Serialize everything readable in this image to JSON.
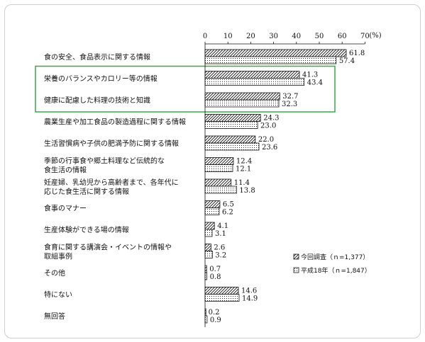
{
  "chart_data": {
    "type": "bar",
    "orientation": "horizontal",
    "xlim": [
      0,
      70
    ],
    "xticks": [
      "0",
      "10",
      "20",
      "30",
      "40",
      "50",
      "60",
      "70"
    ],
    "unit_label": "(%)",
    "categories": [
      [
        "食の安全、食品表示に関する情報"
      ],
      [
        "栄養のバランスやカロリー等の情報"
      ],
      [
        "健康に配慮した料理の技術と知識"
      ],
      [
        "農業生産や加工食品の製造過程に関する情報"
      ],
      [
        "生活習慣病や子供の肥満予防に関する情報"
      ],
      [
        "季節の行事食や郷土料理など伝統的な",
        "食生活の情報"
      ],
      [
        "妊産婦、乳幼児から高齢者まで、各年代に",
        "応じた食生活に関する情報"
      ],
      [
        "食事のマナー"
      ],
      [
        "生産体験ができる場の情報"
      ],
      [
        "食育に関する講演会・イベントの情報や",
        "取組事例"
      ],
      [
        "その他"
      ],
      [
        "特にない"
      ],
      [
        "無回答"
      ]
    ],
    "series": [
      {
        "name": "今回調査（ｎ=1,377）",
        "pattern": "hatch",
        "values": [
          61.8,
          41.3,
          32.7,
          24.3,
          22.0,
          12.4,
          11.4,
          6.5,
          4.1,
          2.6,
          0.7,
          14.6,
          0.2
        ]
      },
      {
        "name": "平成18年（ｎ=1,847）",
        "pattern": "dots",
        "values": [
          57.4,
          43.4,
          32.3,
          23.0,
          23.6,
          12.1,
          13.8,
          6.2,
          3.1,
          3.2,
          0.8,
          14.9,
          0.9
        ]
      }
    ],
    "value_labels": [
      [
        "61.8",
        "57.4"
      ],
      [
        "41.3",
        "43.4"
      ],
      [
        "32.7",
        "32.3"
      ],
      [
        "24.3",
        "23.0"
      ],
      [
        "22.0",
        "23.6"
      ],
      [
        "12.4",
        "12.1"
      ],
      [
        "11.4",
        "13.8"
      ],
      [
        "6.5",
        "6.2"
      ],
      [
        "4.1",
        "3.1"
      ],
      [
        "2.6",
        "3.2"
      ],
      [
        "0.7",
        "0.8"
      ],
      [
        "14.6",
        "14.9"
      ],
      [
        "0.2",
        "0.9"
      ]
    ],
    "highlighted_categories": [
      1,
      2
    ],
    "highlight_color": "#3aa84a",
    "legend_position": "right",
    "grid": false
  }
}
